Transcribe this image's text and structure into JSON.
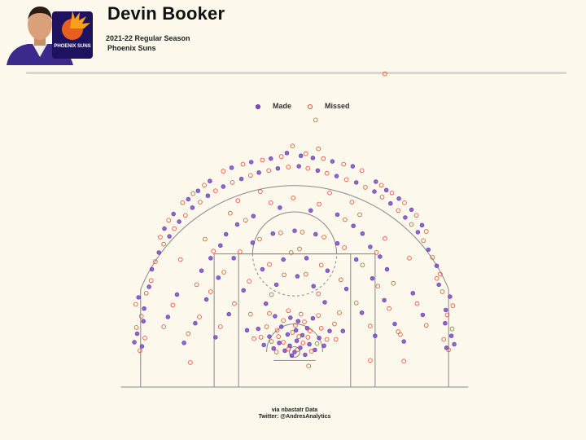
{
  "header": {
    "title": "Devin Booker",
    "season": "2021-22 Regular Season",
    "team": "Phoenix Suns",
    "logo_text": "PHOENIX SUNS"
  },
  "legend": {
    "made_label": "Made",
    "missed_label": "Missed"
  },
  "credit": {
    "line1": "via nbastatr Data",
    "line2": "Twitter: @AndresAnalytics"
  },
  "colors": {
    "background": "#fdf8ec",
    "made_fill": "#7b4dcc",
    "made_stroke": "#5b2fa3",
    "missed_stroke": "#e34a2a",
    "court_lines": "#888888",
    "team_purple": "#1d1160",
    "team_orange": "#e56020"
  },
  "chart_data": {
    "type": "scatter",
    "title": "",
    "xlabel": "",
    "ylabel": "",
    "xlim": [
      -25,
      25
    ],
    "ylim": [
      -5,
      45
    ],
    "units": "feet from basket",
    "grid": false,
    "legend_position": "top-center",
    "series": [
      {
        "name": "Made",
        "style": "filled",
        "points": [
          [
            0,
            0
          ],
          [
            0.8,
            0.6
          ],
          [
            -0.7,
            0.9
          ],
          [
            1.5,
            -0.4
          ],
          [
            -1.4,
            0.2
          ],
          [
            0.3,
            1.6
          ],
          [
            -0.4,
            -0.5
          ],
          [
            2.1,
            1.1
          ],
          [
            -2.2,
            1.3
          ],
          [
            1.1,
            2.4
          ],
          [
            -1.0,
            2.5
          ],
          [
            2.9,
            0.3
          ],
          [
            -3.0,
            0.5
          ],
          [
            0.2,
            3.1
          ],
          [
            3.5,
            2.0
          ],
          [
            -3.6,
            2.2
          ],
          [
            1.8,
            3.4
          ],
          [
            -1.9,
            3.6
          ],
          [
            4.2,
            0.9
          ],
          [
            -4.4,
            1.0
          ],
          [
            0.5,
            4.4
          ],
          [
            -0.6,
            4.9
          ],
          [
            2.6,
            4.8
          ],
          [
            -2.8,
            5.1
          ],
          [
            5.0,
            3.0
          ],
          [
            -5.2,
            3.3
          ],
          [
            -21.8,
            0.8
          ],
          [
            -22.5,
            2.6
          ],
          [
            -21.6,
            4.4
          ],
          [
            -22.9,
            1.4
          ],
          [
            -21.5,
            6.2
          ],
          [
            -22.3,
            7.8
          ],
          [
            -20.8,
            9.3
          ],
          [
            21.7,
            0.6
          ],
          [
            22.4,
            2.3
          ],
          [
            21.5,
            4.1
          ],
          [
            22.8,
            1.1
          ],
          [
            21.6,
            6.0
          ],
          [
            22.2,
            7.9
          ],
          [
            20.6,
            9.6
          ],
          [
            -20.4,
            11.8
          ],
          [
            -19.4,
            14.2
          ],
          [
            -17.9,
            16.5
          ],
          [
            -16.5,
            18.6
          ],
          [
            -14.6,
            20.6
          ],
          [
            -12.4,
            22.3
          ],
          [
            -10.2,
            23.6
          ],
          [
            -7.6,
            24.7
          ],
          [
            -5.1,
            25.6
          ],
          [
            -2.4,
            26.2
          ],
          [
            0.6,
            26.5
          ],
          [
            3.3,
            25.9
          ],
          [
            6.0,
            25.1
          ],
          [
            8.8,
            24.2
          ],
          [
            11.4,
            22.9
          ],
          [
            13.7,
            21.2
          ],
          [
            15.8,
            19.2
          ],
          [
            17.6,
            17.1
          ],
          [
            19.1,
            14.6
          ],
          [
            20.3,
            12.3
          ],
          [
            -15.2,
            21.8
          ],
          [
            -13.8,
            23.0
          ],
          [
            -12.1,
            24.4
          ],
          [
            -17.3,
            19.7
          ],
          [
            -18.6,
            17.6
          ],
          [
            13.1,
            23.1
          ],
          [
            14.9,
            21.9
          ],
          [
            16.7,
            20.3
          ],
          [
            18.2,
            18.1
          ],
          [
            11.6,
            24.3
          ],
          [
            -9.0,
            26.3
          ],
          [
            -6.2,
            27.1
          ],
          [
            -3.4,
            27.6
          ],
          [
            2.6,
            27.7
          ],
          [
            5.4,
            27.2
          ],
          [
            8.3,
            26.5
          ],
          [
            -1.1,
            28.4
          ],
          [
            0.9,
            28.0
          ],
          [
            -14.2,
            4.1
          ],
          [
            -12.6,
            7.5
          ],
          [
            -10.9,
            10.6
          ],
          [
            -8.7,
            13.4
          ],
          [
            -6.0,
            15.6
          ],
          [
            -3.1,
            16.9
          ],
          [
            0.0,
            17.3
          ],
          [
            3.0,
            16.8
          ],
          [
            6.1,
            15.5
          ],
          [
            8.8,
            13.2
          ],
          [
            11.1,
            10.5
          ],
          [
            12.8,
            7.4
          ],
          [
            14.3,
            4.0
          ],
          [
            -15.8,
            1.3
          ],
          [
            15.6,
            1.5
          ],
          [
            -11.3,
            2.1
          ],
          [
            11.5,
            2.3
          ],
          [
            -9.4,
            5.4
          ],
          [
            9.6,
            5.6
          ],
          [
            -7.3,
            8.8
          ],
          [
            7.4,
            9.0
          ],
          [
            -4.6,
            11.8
          ],
          [
            4.7,
            11.6
          ],
          [
            -1.6,
            13.2
          ],
          [
            1.7,
            13.4
          ],
          [
            -13.3,
            11.6
          ],
          [
            13.2,
            11.8
          ],
          [
            -10.6,
            15.2
          ],
          [
            10.8,
            15.0
          ],
          [
            -5.9,
            19.4
          ],
          [
            6.1,
            19.6
          ],
          [
            -2.1,
            20.6
          ],
          [
            2.3,
            20.2
          ],
          [
            -8.2,
            18.2
          ],
          [
            8.4,
            18.0
          ],
          [
            -16.8,
            8.2
          ],
          [
            16.9,
            8.4
          ],
          [
            -18.1,
            5.0
          ],
          [
            18.3,
            5.3
          ],
          [
            -6.8,
            3.1
          ],
          [
            6.9,
            3.0
          ],
          [
            -4.1,
            6.9
          ],
          [
            4.3,
            7.1
          ],
          [
            -2.6,
            9.6
          ],
          [
            2.7,
            9.4
          ],
          [
            0.4,
            10.8
          ],
          [
            -12.0,
            13.4
          ],
          [
            12.2,
            13.6
          ],
          [
            -9.8,
            16.8
          ],
          [
            9.7,
            16.9
          ]
        ]
      },
      {
        "name": "Missed",
        "style": "hollow",
        "points": [
          [
            0.4,
            0.3
          ],
          [
            -0.9,
            0.4
          ],
          [
            1.2,
            1.3
          ],
          [
            -1.6,
            1.4
          ],
          [
            0.6,
            2.2
          ],
          [
            -0.3,
            2.8
          ],
          [
            2.4,
            0.1
          ],
          [
            -2.6,
            0.0
          ],
          [
            1.9,
            2.1
          ],
          [
            -2.3,
            2.2
          ],
          [
            0.1,
            3.8
          ],
          [
            3.2,
            1.2
          ],
          [
            -3.3,
            1.5
          ],
          [
            2.2,
            3.0
          ],
          [
            -2.5,
            3.1
          ],
          [
            3.8,
            3.4
          ],
          [
            -4.0,
            3.6
          ],
          [
            1.4,
            4.3
          ],
          [
            -1.6,
            4.5
          ],
          [
            4.6,
            1.8
          ],
          [
            -4.8,
            2.1
          ],
          [
            0.9,
            5.4
          ],
          [
            -0.9,
            5.9
          ],
          [
            3.4,
            5.2
          ],
          [
            -3.6,
            5.5
          ],
          [
            5.7,
            4.0
          ],
          [
            -22.1,
            0.2
          ],
          [
            -21.4,
            2.0
          ],
          [
            -22.6,
            3.5
          ],
          [
            -21.9,
            5.1
          ],
          [
            -22.7,
            6.8
          ],
          [
            -21.2,
            8.4
          ],
          [
            -20.5,
            10.2
          ],
          [
            22.0,
            0.3
          ],
          [
            21.3,
            1.8
          ],
          [
            22.5,
            3.3
          ],
          [
            21.8,
            5.3
          ],
          [
            22.6,
            6.6
          ],
          [
            21.1,
            8.6
          ],
          [
            20.3,
            10.5
          ],
          [
            -19.9,
            12.9
          ],
          [
            -18.7,
            15.4
          ],
          [
            -17.2,
            17.6
          ],
          [
            -15.6,
            19.5
          ],
          [
            -13.5,
            21.4
          ],
          [
            -11.3,
            23.0
          ],
          [
            -8.9,
            24.2
          ],
          [
            -6.3,
            25.2
          ],
          [
            -3.7,
            25.9
          ],
          [
            -0.9,
            26.4
          ],
          [
            1.9,
            26.2
          ],
          [
            4.6,
            25.5
          ],
          [
            7.4,
            24.6
          ],
          [
            10.1,
            23.5
          ],
          [
            12.5,
            22.1
          ],
          [
            14.8,
            20.2
          ],
          [
            16.7,
            18.2
          ],
          [
            18.4,
            15.9
          ],
          [
            19.7,
            13.5
          ],
          [
            20.8,
            11.1
          ],
          [
            -16.0,
            21.3
          ],
          [
            -14.5,
            22.6
          ],
          [
            -12.9,
            23.8
          ],
          [
            -18.0,
            18.8
          ],
          [
            -19.2,
            16.4
          ],
          [
            13.9,
            22.7
          ],
          [
            15.7,
            21.3
          ],
          [
            17.4,
            19.5
          ],
          [
            18.8,
            17.2
          ],
          [
            12.4,
            23.8
          ],
          [
            -10.2,
            25.8
          ],
          [
            -7.4,
            26.8
          ],
          [
            -4.6,
            27.4
          ],
          [
            -1.9,
            27.9
          ],
          [
            1.6,
            28.3
          ],
          [
            4.1,
            27.6
          ],
          [
            7.0,
            26.8
          ],
          [
            9.6,
            25.9
          ],
          [
            -0.3,
            29.4
          ],
          [
            3.4,
            29.0
          ],
          [
            -13.6,
            5.0
          ],
          [
            -12.0,
            8.6
          ],
          [
            -10.1,
            11.4
          ],
          [
            -7.8,
            14.3
          ],
          [
            -5.0,
            16.1
          ],
          [
            -2.0,
            17.0
          ],
          [
            1.1,
            17.1
          ],
          [
            4.2,
            16.4
          ],
          [
            7.1,
            14.9
          ],
          [
            9.7,
            12.4
          ],
          [
            11.9,
            9.4
          ],
          [
            13.5,
            6.2
          ],
          [
            14.8,
            2.9
          ],
          [
            -15.2,
            2.6
          ],
          [
            15.1,
            2.5
          ],
          [
            -10.6,
            3.6
          ],
          [
            10.8,
            3.7
          ],
          [
            -8.6,
            6.9
          ],
          [
            8.8,
            7.0
          ],
          [
            -6.5,
            10.1
          ],
          [
            6.6,
            10.3
          ],
          [
            -3.6,
            12.5
          ],
          [
            3.8,
            12.4
          ],
          [
            -0.5,
            14.2
          ],
          [
            0.7,
            14.7
          ],
          [
            -14.0,
            9.6
          ],
          [
            14.1,
            9.8
          ],
          [
            -11.6,
            14.4
          ],
          [
            11.7,
            14.2
          ],
          [
            -7.0,
            18.8
          ],
          [
            7.2,
            18.9
          ],
          [
            -3.4,
            21.3
          ],
          [
            3.5,
            21.1
          ],
          [
            -9.2,
            19.8
          ],
          [
            9.3,
            19.6
          ],
          [
            -17.4,
            6.7
          ],
          [
            17.5,
            6.9
          ],
          [
            -18.7,
            3.6
          ],
          [
            18.8,
            3.8
          ],
          [
            -5.8,
            1.9
          ],
          [
            5.9,
            1.8
          ],
          [
            -3.3,
            8.2
          ],
          [
            3.4,
            8.3
          ],
          [
            -1.5,
            11.0
          ],
          [
            1.6,
            11.1
          ],
          [
            -12.8,
            16.1
          ],
          [
            12.9,
            16.2
          ],
          [
            -4.9,
            22.9
          ],
          [
            5.0,
            22.7
          ],
          [
            -0.2,
            22.0
          ],
          [
            -16.3,
            13.2
          ],
          [
            16.4,
            13.4
          ],
          [
            -8.1,
            21.6
          ],
          [
            8.2,
            21.4
          ],
          [
            -6.3,
            5.4
          ],
          [
            6.4,
            5.6
          ],
          [
            2.0,
            -2.0
          ],
          [
            -14.9,
            -1.5
          ],
          [
            15.6,
            -1.3
          ],
          [
            10.8,
            -1.2
          ],
          [
            3.0,
            33.1
          ],
          [
            12.9,
            39.7
          ]
        ]
      }
    ],
    "court": {
      "baseline_y": -5.0,
      "three_point_radius": 23.75,
      "corner_three_x": 22.0,
      "paint_width": 16.0,
      "free_throw_y": 14.0,
      "outer_lane_width": 23.0
    }
  }
}
